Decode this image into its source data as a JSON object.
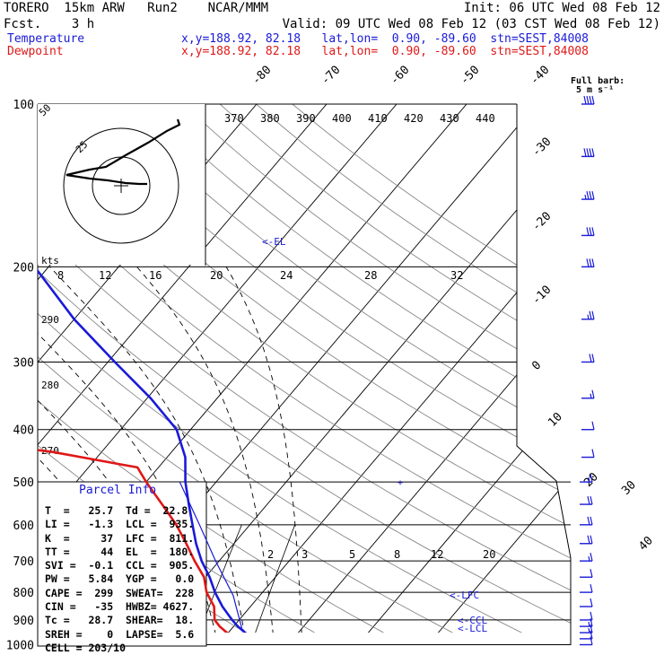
{
  "header": {
    "model": "TORERO  15km ARW   Run2    NCAR/MMM",
    "init": "Init: 06 UTC Wed 08 Feb 12",
    "fcst": "Fcst.    3 h",
    "valid": "Valid: 09 UTC Wed 08 Feb 12 (03 CST Wed 08 Feb 12)",
    "temp_label": "Temperature",
    "dew_label": "Dewpoint",
    "temp_loc": "x,y=188.92, 82.18   lat,lon=  0.90, -89.60  stn=SEST,84008",
    "dew_loc": "x,y=188.92, 82.18   lat,lon=  0.90, -89.60  stn=SEST,84008",
    "colors": {
      "temperature": "#1a1ad8",
      "dewpoint": "#e01818"
    }
  },
  "barb_legend": {
    "title": "Full barb:",
    "unit": "5 m s⁻¹"
  },
  "hodograph": {
    "unit": "kts",
    "ring_labels": [
      "50",
      "25"
    ]
  },
  "chart_data": {
    "type": "line",
    "pressure_ticks": [
      "100",
      "200",
      "300",
      "400",
      "500",
      "600",
      "700",
      "800",
      "900",
      "1000"
    ],
    "pressure_levels": [
      100,
      200,
      300,
      400,
      500,
      600,
      700,
      800,
      900,
      1000
    ],
    "isotherm_labels": [
      "-80",
      "-70",
      "-60",
      "-50",
      "-40",
      "-30",
      "-20",
      "-10",
      "0",
      "10",
      "20",
      "30",
      "40"
    ],
    "theta_labels": [
      "370",
      "380",
      "390",
      "400",
      "410",
      "420",
      "430",
      "440"
    ],
    "theta_e_labels": [
      "8",
      "12",
      "16",
      "20",
      "24",
      "28",
      "32"
    ],
    "theta_left_labels": [
      "290",
      "280",
      "270"
    ],
    "mixing_ratio_labels": [
      "2",
      "3",
      "5",
      "8",
      "12",
      "20"
    ],
    "level_labels": {
      "el": "<-EL",
      "lfc": "<-LFC",
      "ccl": "<-CCL",
      "lcl": "<-LCL"
    },
    "series": [
      {
        "name": "Temperature",
        "points": [
          [
            1000,
            25.7
          ],
          [
            975,
            24.4
          ],
          [
            950,
            22.4
          ],
          [
            925,
            20.6
          ],
          [
            900,
            19.0
          ],
          [
            850,
            16.0
          ],
          [
            800,
            13.2
          ],
          [
            750,
            10.6
          ],
          [
            700,
            7.5
          ],
          [
            650,
            4.6
          ],
          [
            600,
            1.8
          ],
          [
            550,
            -1.2
          ],
          [
            500,
            -4.4
          ],
          [
            450,
            -7.4
          ],
          [
            400,
            -12.0
          ],
          [
            350,
            -19.5
          ],
          [
            300,
            -29.0
          ],
          [
            250,
            -40.0
          ],
          [
            200,
            -52.0
          ],
          [
            175,
            -59.0
          ],
          [
            150,
            -66.5
          ],
          [
            125,
            -74.5
          ],
          [
            100,
            -78.5
          ]
        ]
      },
      {
        "name": "Dewpoint",
        "points": [
          [
            1000,
            22.8
          ],
          [
            975,
            22.5
          ],
          [
            950,
            19.8
          ],
          [
            925,
            18.0
          ],
          [
            900,
            16.5
          ],
          [
            850,
            14.8
          ],
          [
            800,
            12.0
          ],
          [
            750,
            9.8
          ],
          [
            700,
            6.5
          ],
          [
            650,
            3.2
          ],
          [
            600,
            -0.5
          ],
          [
            550,
            -5.0
          ],
          [
            500,
            -10.0
          ],
          [
            470,
            -13.0
          ],
          [
            440,
            -27.0
          ],
          [
            410,
            -47.0
          ],
          [
            380,
            -62.0
          ],
          [
            350,
            -69.0
          ],
          [
            300,
            -73.0
          ],
          [
            250,
            -78.0
          ],
          [
            200,
            -83.0
          ],
          [
            150,
            -86.5
          ],
          [
            125,
            -87.5
          ],
          [
            100,
            -87.5
          ]
        ]
      }
    ],
    "wind_barbs": [
      {
        "p": 1000,
        "speed_ms": 5
      },
      {
        "p": 975,
        "speed_ms": 7
      },
      {
        "p": 950,
        "speed_ms": 8
      },
      {
        "p": 925,
        "speed_ms": 8
      },
      {
        "p": 900,
        "speed_ms": 7
      },
      {
        "p": 850,
        "speed_ms": 6
      },
      {
        "p": 800,
        "speed_ms": 5
      },
      {
        "p": 750,
        "speed_ms": 6
      },
      {
        "p": 700,
        "speed_ms": 9
      },
      {
        "p": 650,
        "speed_ms": 10
      },
      {
        "p": 600,
        "speed_ms": 11
      },
      {
        "p": 550,
        "speed_ms": 11
      },
      {
        "p": 500,
        "speed_ms": 9
      },
      {
        "p": 450,
        "speed_ms": 6
      },
      {
        "p": 400,
        "speed_ms": 5
      },
      {
        "p": 350,
        "speed_ms": 8
      },
      {
        "p": 300,
        "speed_ms": 12
      },
      {
        "p": 250,
        "speed_ms": 14
      },
      {
        "p": 200,
        "speed_ms": 15
      },
      {
        "p": 175,
        "speed_ms": 16
      },
      {
        "p": 150,
        "speed_ms": 18
      },
      {
        "p": 125,
        "speed_ms": 20
      },
      {
        "p": 100,
        "speed_ms": 21
      }
    ]
  },
  "parcel_info": {
    "title": "Parcel Info",
    "rows": [
      "T  =   25.7  Td =  22.8",
      "LI =   -1.3  LCL =  935.",
      "K  =     37  LFC =  811.",
      "TT =     44  EL  =  180.",
      "SVI =  -0.1  CCL =  905.",
      "PW =   5.84  YGP =   0.0",
      "CAPE =  299  SWEAT=  228",
      "CIN =   -35  HWBZ= 4627.",
      "Tc =   28.7  SHEAR=  18.",
      "SREH =    0  LAPSE=  5.6",
      "CELL = 203/10"
    ]
  }
}
